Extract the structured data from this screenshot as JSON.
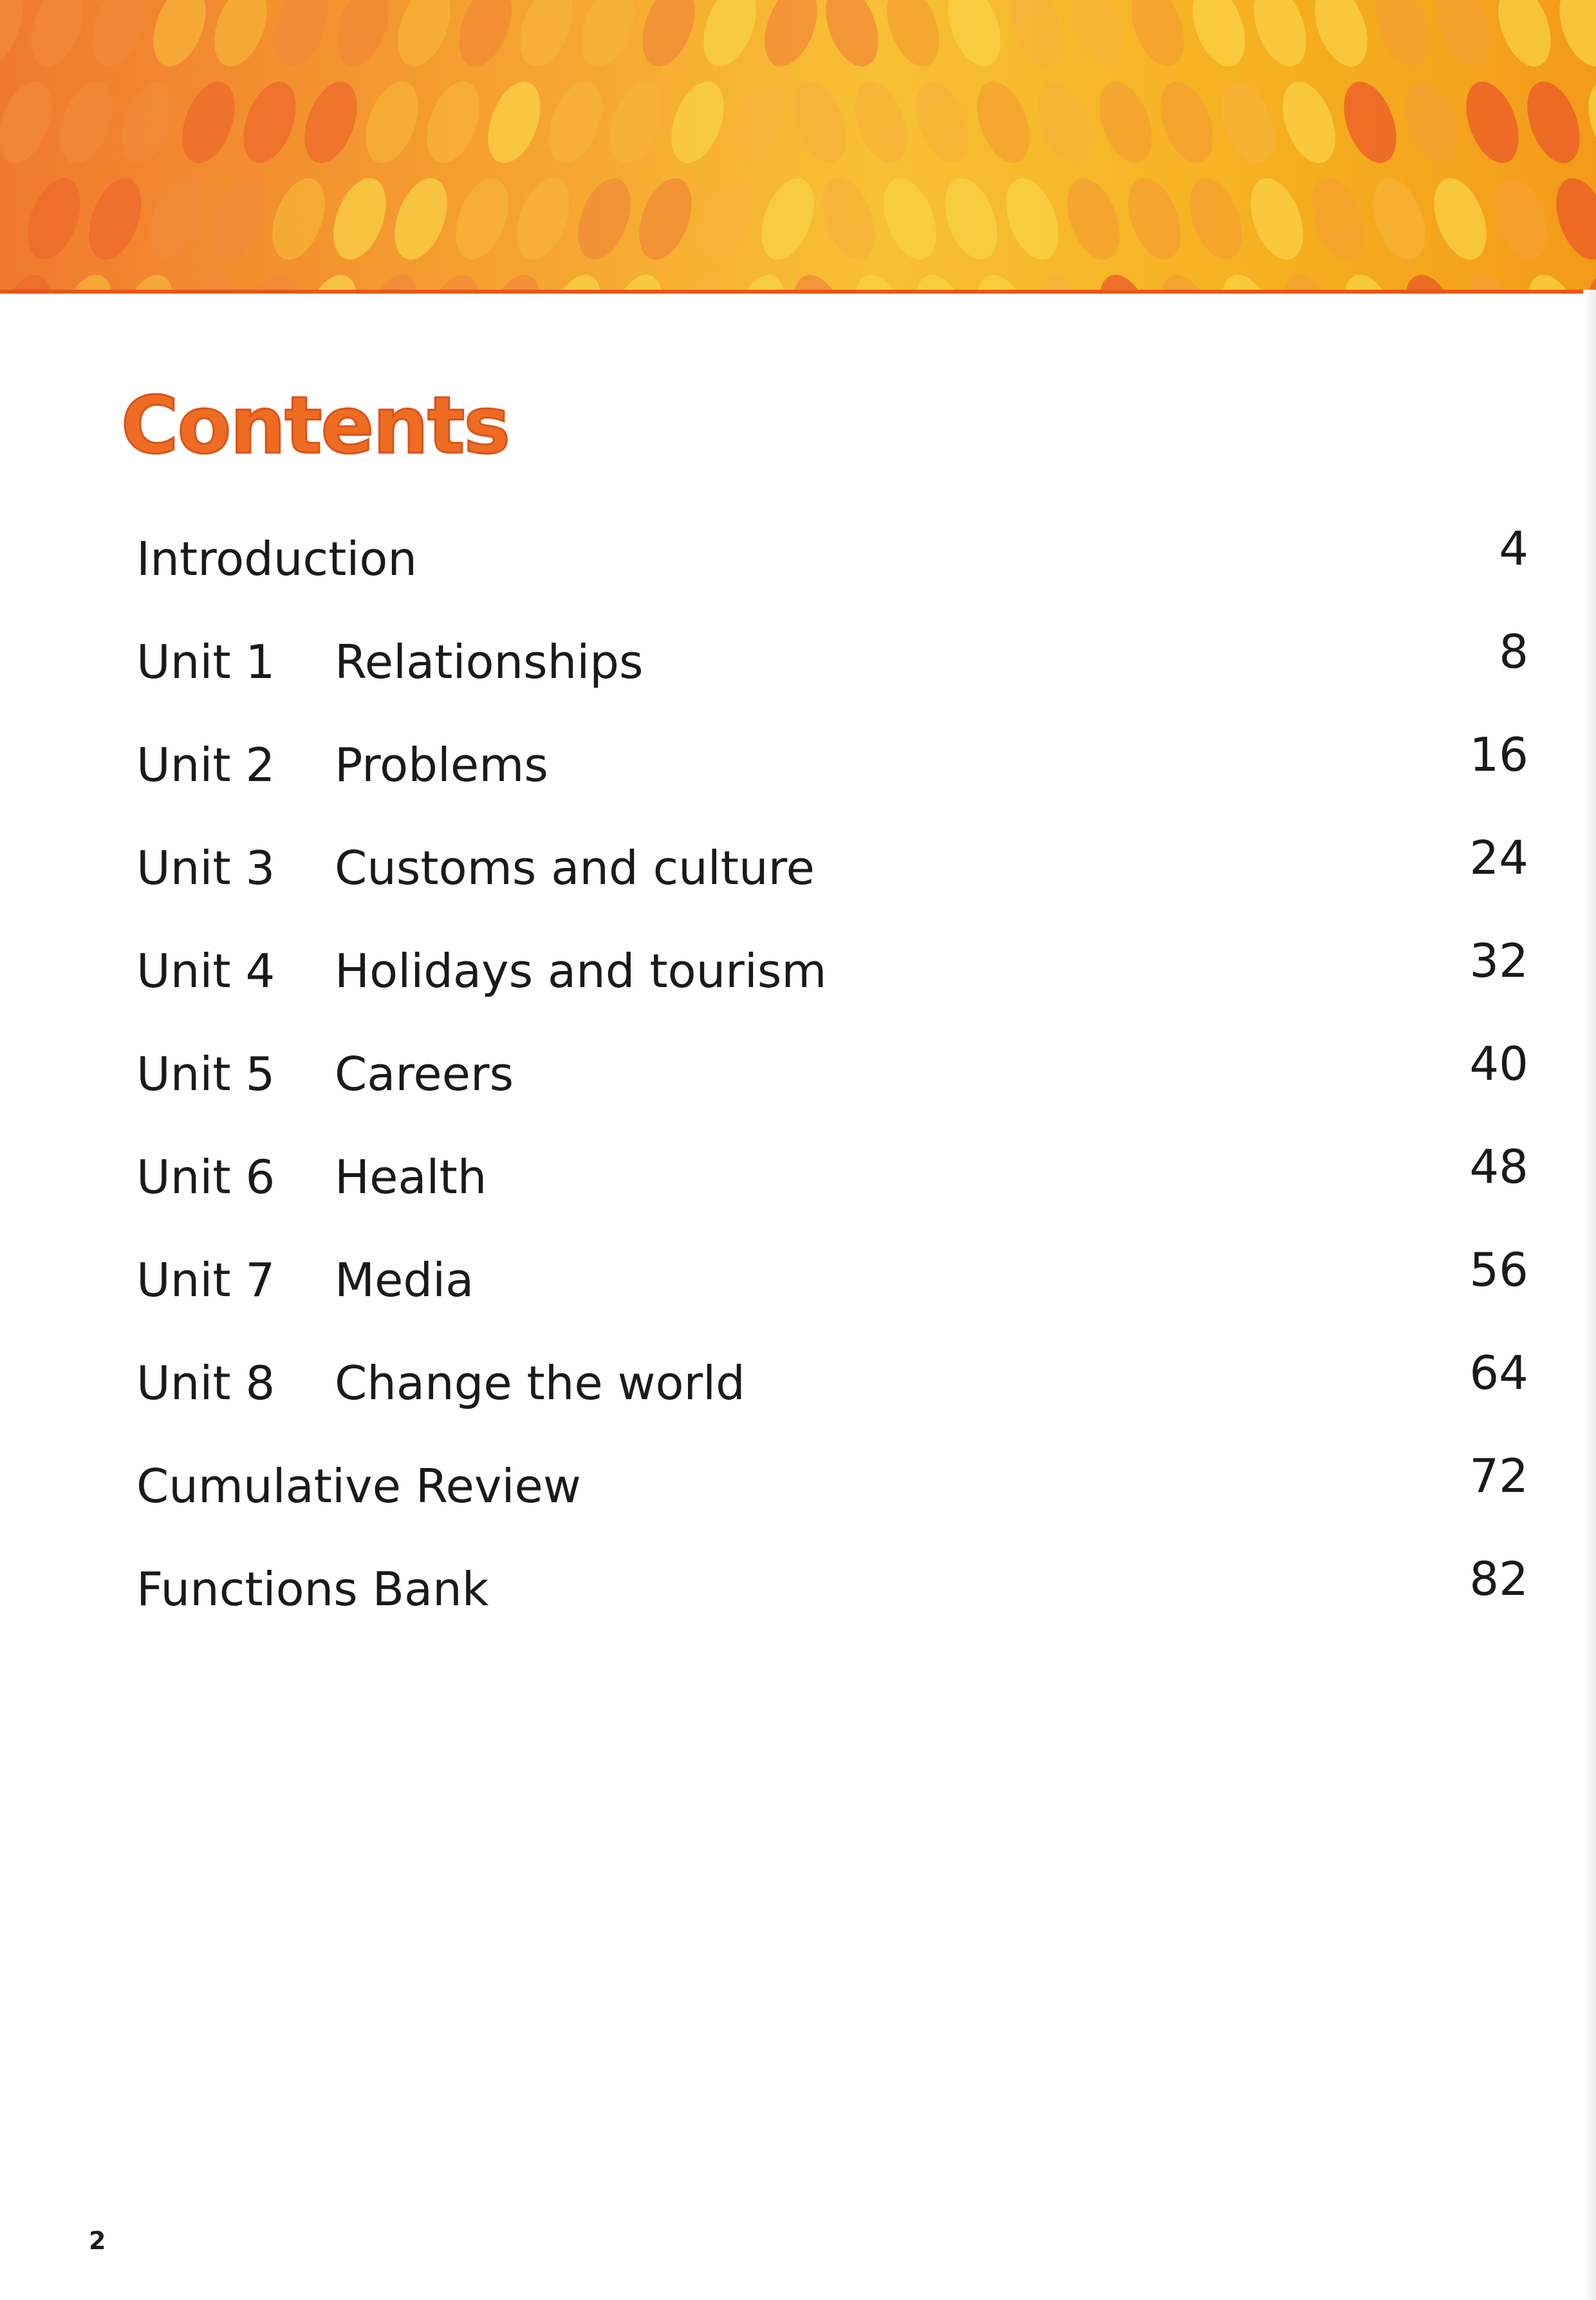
{
  "header": {
    "title": "Contents",
    "accent_color": "#ee6b22"
  },
  "toc": {
    "entries": [
      {
        "label": "Introduction",
        "unit": "",
        "topic": "",
        "page": "4"
      },
      {
        "label": "",
        "unit": "Unit 1",
        "topic": "Relationships",
        "page": "8"
      },
      {
        "label": "",
        "unit": "Unit 2",
        "topic": "Problems",
        "page": "16"
      },
      {
        "label": "",
        "unit": "Unit 3",
        "topic": "Customs and culture",
        "page": "24"
      },
      {
        "label": "",
        "unit": "Unit 4",
        "topic": "Holidays and tourism",
        "page": "32"
      },
      {
        "label": "",
        "unit": "Unit 5",
        "topic": "Careers",
        "page": "40"
      },
      {
        "label": "",
        "unit": "Unit 6",
        "topic": "Health",
        "page": "48"
      },
      {
        "label": "",
        "unit": "Unit 7",
        "topic": "Media",
        "page": "56"
      },
      {
        "label": "",
        "unit": "Unit 8",
        "topic": "Change the world",
        "page": "64"
      },
      {
        "label": "Cumulative Review",
        "unit": "",
        "topic": "",
        "page": "72"
      },
      {
        "label": "Functions Bank",
        "unit": "",
        "topic": "",
        "page": "82"
      }
    ]
  },
  "footer": {
    "page_number": "2"
  }
}
